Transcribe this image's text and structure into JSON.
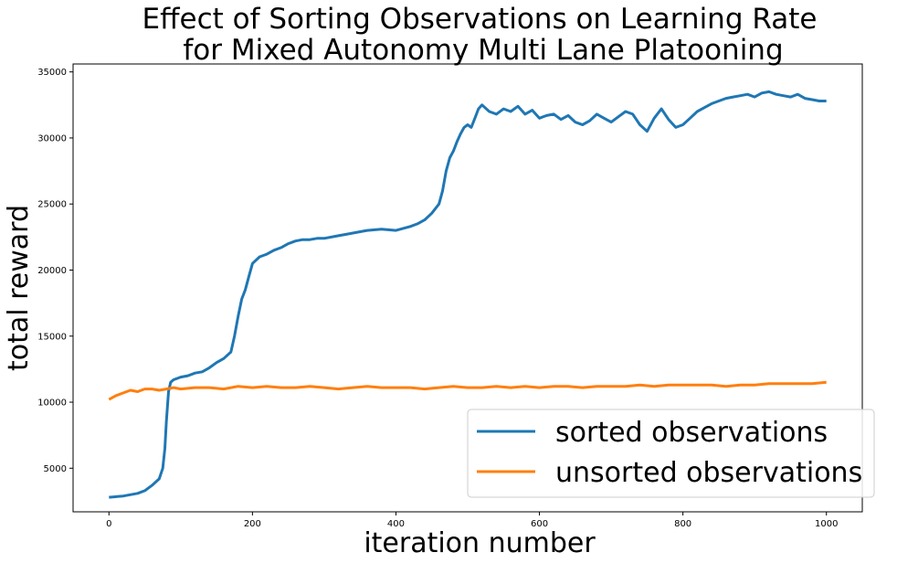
{
  "chart_data": {
    "type": "line",
    "title": [
      "Effect of Sorting Observations on Learning Rate",
      "for Mixed Autonomy Multi Lane Platooning"
    ],
    "xlabel": "iteration number",
    "ylabel": "total reward",
    "xlim": [
      -50,
      1050
    ],
    "ylim": [
      1700,
      35600
    ],
    "xticks": [
      0,
      200,
      400,
      600,
      800,
      1000
    ],
    "yticks": [
      5000,
      10000,
      15000,
      20000,
      25000,
      30000,
      35000
    ],
    "legend_position": "lower-right",
    "grid": false,
    "series": [
      {
        "name": "sorted observations",
        "color": "#1f77b4",
        "x": [
          0,
          20,
          40,
          50,
          60,
          70,
          75,
          78,
          80,
          83,
          86,
          88,
          90,
          100,
          110,
          120,
          130,
          140,
          150,
          160,
          170,
          175,
          180,
          185,
          190,
          195,
          200,
          210,
          220,
          230,
          240,
          250,
          260,
          270,
          280,
          290,
          300,
          320,
          340,
          360,
          380,
          400,
          420,
          430,
          440,
          450,
          460,
          465,
          470,
          475,
          480,
          485,
          490,
          495,
          500,
          505,
          510,
          515,
          520,
          530,
          540,
          550,
          560,
          570,
          580,
          590,
          600,
          610,
          620,
          630,
          640,
          650,
          660,
          670,
          680,
          690,
          700,
          710,
          720,
          730,
          740,
          750,
          760,
          770,
          780,
          790,
          800,
          810,
          820,
          830,
          840,
          850,
          860,
          870,
          880,
          890,
          900,
          910,
          920,
          930,
          940,
          950,
          960,
          970,
          980,
          990,
          1000
        ],
        "values": [
          2800,
          2900,
          3100,
          3300,
          3700,
          4200,
          5000,
          6500,
          8500,
          10800,
          11500,
          11600,
          11700,
          11900,
          12000,
          12200,
          12300,
          12600,
          13000,
          13300,
          13800,
          15000,
          16500,
          17800,
          18500,
          19500,
          20500,
          21000,
          21200,
          21500,
          21700,
          22000,
          22200,
          22300,
          22300,
          22400,
          22400,
          22600,
          22800,
          23000,
          23100,
          23000,
          23300,
          23500,
          23800,
          24300,
          25000,
          26000,
          27500,
          28500,
          29000,
          29700,
          30300,
          30800,
          31000,
          30800,
          31500,
          32200,
          32500,
          32000,
          31800,
          32200,
          32000,
          32400,
          31800,
          32100,
          31500,
          31700,
          31800,
          31400,
          31700,
          31200,
          31000,
          31300,
          31800,
          31500,
          31200,
          31600,
          32000,
          31800,
          31000,
          30500,
          31500,
          32200,
          31400,
          30800,
          31000,
          31500,
          32000,
          32300,
          32600,
          32800,
          33000,
          33100,
          33200,
          33300,
          33100,
          33400,
          33500,
          33300,
          33200,
          33100,
          33300,
          33000,
          32900,
          32800,
          32800
        ]
      },
      {
        "name": "unsorted observations",
        "color": "#ff7f0e",
        "x": [
          0,
          10,
          20,
          30,
          40,
          50,
          60,
          70,
          80,
          90,
          100,
          120,
          140,
          160,
          180,
          200,
          220,
          240,
          260,
          280,
          300,
          320,
          340,
          360,
          380,
          400,
          420,
          440,
          460,
          480,
          500,
          520,
          540,
          560,
          580,
          600,
          620,
          640,
          660,
          680,
          700,
          720,
          740,
          760,
          780,
          800,
          820,
          840,
          860,
          880,
          900,
          920,
          940,
          960,
          980,
          1000
        ],
        "values": [
          10200,
          10500,
          10700,
          10900,
          10800,
          11000,
          11000,
          10900,
          11000,
          11100,
          11000,
          11100,
          11100,
          11000,
          11200,
          11100,
          11200,
          11100,
          11100,
          11200,
          11100,
          11000,
          11100,
          11200,
          11100,
          11100,
          11100,
          11000,
          11100,
          11200,
          11100,
          11100,
          11200,
          11100,
          11200,
          11100,
          11200,
          11200,
          11100,
          11200,
          11200,
          11200,
          11300,
          11200,
          11300,
          11300,
          11300,
          11300,
          11200,
          11300,
          11300,
          11400,
          11400,
          11400,
          11400,
          11500
        ]
      }
    ]
  }
}
